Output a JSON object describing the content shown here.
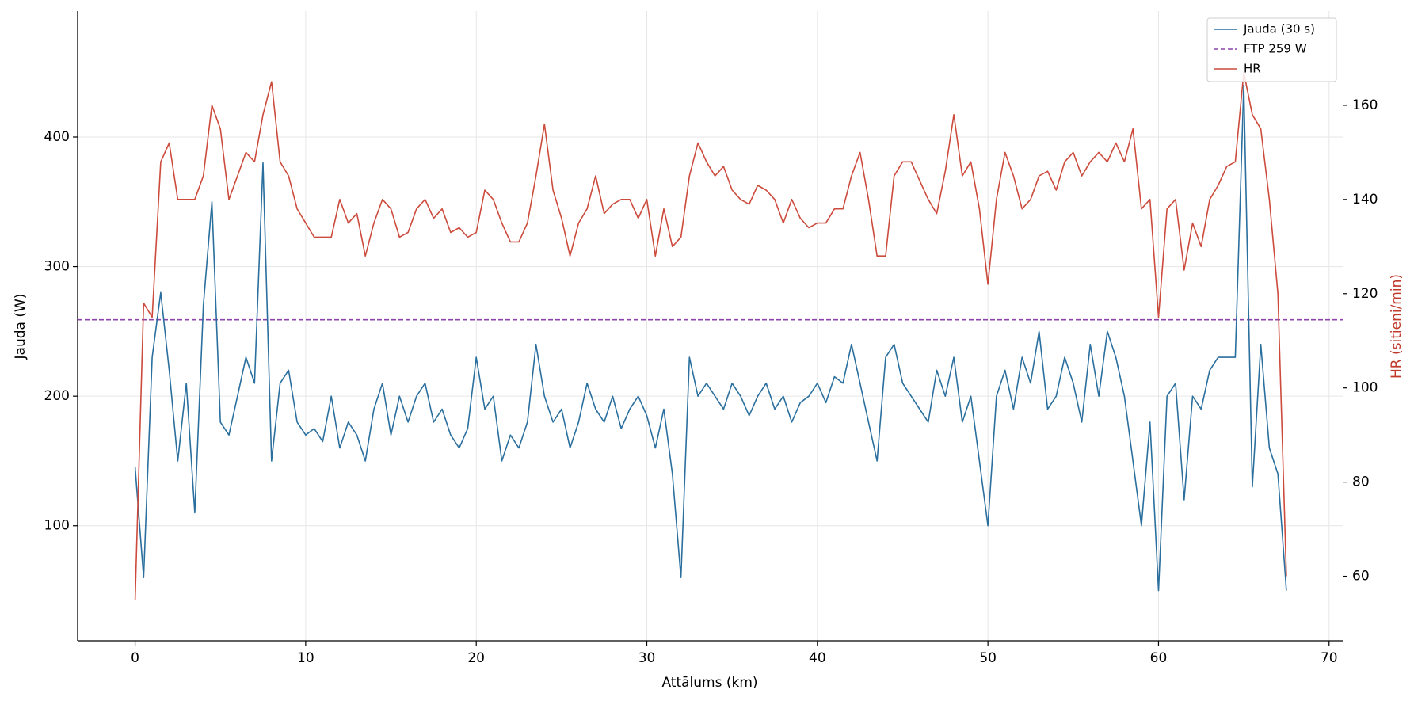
{
  "chart_data": {
    "type": "line",
    "xlabel": "Attālums (km)",
    "ylabel": "Jauda (W)",
    "y2label": "HR (sitieni/min)",
    "y2label_color": "#c0392b",
    "x": [
      0,
      0.5,
      1,
      1.5,
      2,
      2.5,
      3,
      3.5,
      4,
      4.5,
      5,
      5.5,
      6,
      6.5,
      7,
      7.5,
      8,
      8.5,
      9,
      9.5,
      10,
      10.5,
      11,
      11.5,
      12,
      12.5,
      13,
      13.5,
      14,
      14.5,
      15,
      15.5,
      16,
      16.5,
      17,
      17.5,
      18,
      18.5,
      19,
      19.5,
      20,
      20.5,
      21,
      21.5,
      22,
      22.5,
      23,
      23.5,
      24,
      24.5,
      25,
      25.5,
      26,
      26.5,
      27,
      27.5,
      28,
      28.5,
      29,
      29.5,
      30,
      30.5,
      31,
      31.5,
      32,
      32.5,
      33,
      33.5,
      34,
      34.5,
      35,
      35.5,
      36,
      36.5,
      37,
      37.5,
      38,
      38.5,
      39,
      39.5,
      40,
      40.5,
      41,
      41.5,
      42,
      42.5,
      43,
      43.5,
      44,
      44.5,
      45,
      45.5,
      46,
      46.5,
      47,
      47.5,
      48,
      48.5,
      49,
      49.5,
      50,
      50.5,
      51,
      51.5,
      52,
      52.5,
      53,
      53.5,
      54,
      54.5,
      55,
      55.5,
      56,
      56.5,
      57,
      57.5,
      58,
      58.5,
      59,
      59.5,
      60,
      60.5,
      61,
      61.5,
      62,
      62.5,
      63,
      63.5,
      64,
      64.5,
      65,
      65.5,
      66,
      66.5,
      67,
      67.5
    ],
    "series": [
      {
        "name": "Jauda (30 s)",
        "color": "#2a6f9e",
        "axis": "y",
        "values": [
          145,
          60,
          230,
          280,
          220,
          150,
          210,
          110,
          270,
          350,
          180,
          170,
          200,
          230,
          210,
          380,
          150,
          210,
          220,
          180,
          170,
          175,
          165,
          200,
          160,
          180,
          170,
          150,
          190,
          210,
          170,
          200,
          180,
          200,
          210,
          180,
          190,
          170,
          160,
          175,
          230,
          190,
          200,
          150,
          170,
          160,
          180,
          240,
          200,
          180,
          190,
          160,
          180,
          210,
          190,
          180,
          200,
          175,
          190,
          200,
          185,
          160,
          190,
          140,
          60,
          230,
          200,
          210,
          200,
          190,
          210,
          200,
          185,
          200,
          210,
          190,
          200,
          180,
          195,
          200,
          210,
          195,
          215,
          210,
          240,
          210,
          180,
          150,
          230,
          240,
          210,
          200,
          190,
          180,
          220,
          200,
          230,
          180,
          200,
          150,
          100,
          200,
          220,
          190,
          230,
          210,
          250,
          190,
          200,
          230,
          210,
          180,
          240,
          200,
          250,
          230,
          200,
          150,
          100,
          180,
          50,
          200,
          210,
          120,
          200,
          190,
          220,
          230,
          230,
          230,
          440,
          130,
          240,
          160,
          140,
          50
        ]
      },
      {
        "name": "HR",
        "color": "#cc4b3c",
        "axis": "y2",
        "values": [
          55,
          118,
          115,
          148,
          152,
          140,
          140,
          140,
          145,
          160,
          155,
          140,
          145,
          150,
          148,
          158,
          165,
          148,
          145,
          138,
          135,
          132,
          132,
          132,
          140,
          135,
          137,
          128,
          135,
          140,
          138,
          132,
          133,
          138,
          140,
          136,
          138,
          133,
          134,
          132,
          133,
          142,
          140,
          135,
          131,
          131,
          135,
          145,
          156,
          142,
          136,
          128,
          135,
          138,
          145,
          137,
          139,
          140,
          140,
          136,
          140,
          128,
          138,
          130,
          132,
          145,
          152,
          148,
          145,
          147,
          142,
          140,
          139,
          143,
          142,
          140,
          135,
          140,
          136,
          134,
          135,
          135,
          138,
          138,
          145,
          150,
          140,
          128,
          128,
          145,
          148,
          148,
          144,
          140,
          137,
          146,
          158,
          145,
          148,
          138,
          122,
          140,
          150,
          145,
          138,
          140,
          145,
          146,
          142,
          148,
          150,
          145,
          148,
          150,
          148,
          152,
          148,
          155,
          138,
          140,
          115,
          138,
          140,
          125,
          135,
          130,
          140,
          143,
          147,
          148,
          167,
          158,
          155,
          140,
          120,
          60
        ]
      }
    ],
    "reference_line": {
      "name": "FTP 259 W",
      "value": 259,
      "color": "#8e44ad"
    },
    "xlim": [
      -3.37,
      70.8
    ],
    "ylim": [
      11.2,
      497.2
    ],
    "y2lim": [
      46.3,
      180
    ],
    "xticks": [
      0,
      10,
      20,
      30,
      40,
      50,
      60,
      70
    ],
    "yticks": [
      100,
      200,
      300,
      400
    ],
    "y2ticks": [
      60,
      80,
      100,
      120,
      140,
      160
    ],
    "grid": true,
    "legend": "upper right"
  }
}
